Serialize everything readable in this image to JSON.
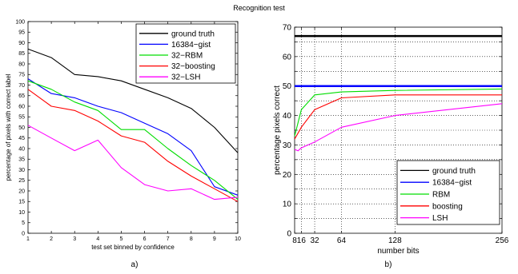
{
  "figure": {
    "title": "Recognition test",
    "panel_captions": [
      "a)",
      "b)"
    ]
  },
  "chart_data": [
    {
      "type": "line",
      "title": "",
      "xlabel": "test set binned by confidence",
      "ylabel": "percentage of pixels with correct label",
      "xlim": [
        1,
        10
      ],
      "ylim": [
        0,
        100
      ],
      "xticks": [
        1,
        2,
        3,
        4,
        5,
        6,
        7,
        8,
        9,
        10
      ],
      "yticks": [
        0,
        5,
        10,
        15,
        20,
        25,
        30,
        35,
        40,
        45,
        50,
        55,
        60,
        65,
        70,
        75,
        80,
        85,
        90,
        95,
        100
      ],
      "grid": false,
      "legend": "top-right",
      "x": [
        1,
        2,
        3,
        4,
        5,
        6,
        7,
        8,
        9,
        10
      ],
      "series": [
        {
          "name": "ground truth",
          "color": "#000000",
          "values": [
            87,
            83,
            75,
            74,
            72,
            68,
            64,
            59,
            50,
            38
          ]
        },
        {
          "name": "16384−gist",
          "color": "#0000ff",
          "values": [
            73,
            66,
            64,
            60,
            57,
            52,
            47,
            39,
            22,
            18
          ]
        },
        {
          "name": "32−RBM",
          "color": "#00dd00",
          "values": [
            72,
            68,
            62,
            58,
            49,
            49,
            40,
            32,
            25,
            16
          ]
        },
        {
          "name": "32−boosting",
          "color": "#ff0000",
          "values": [
            68,
            60,
            58,
            53,
            46,
            43,
            34,
            27,
            21,
            15
          ]
        },
        {
          "name": "32−LSH",
          "color": "#ff00ff",
          "values": [
            51,
            45,
            39,
            44,
            31,
            23,
            20,
            21,
            16,
            17
          ]
        }
      ]
    },
    {
      "type": "line",
      "title": "",
      "xlabel": "number bits",
      "ylabel": "percentage pixels correct",
      "xlim": [
        8,
        256
      ],
      "ylim": [
        0,
        70
      ],
      "xticks": [
        8,
        16,
        32,
        64,
        128,
        256
      ],
      "yticks": [
        0,
        5,
        10,
        15,
        20,
        25,
        30,
        35,
        40,
        45,
        50,
        55,
        60,
        65,
        70
      ],
      "ytick_labels": [
        0,
        10,
        20,
        30,
        40,
        50,
        60,
        70
      ],
      "grid": true,
      "legend": "bottom-right",
      "series": [
        {
          "name": "ground truth",
          "color": "#000000",
          "x": [
            8,
            256
          ],
          "values": [
            67,
            67
          ]
        },
        {
          "name": "16384−gist",
          "color": "#0000ff",
          "x": [
            8,
            256
          ],
          "values": [
            50,
            50
          ]
        },
        {
          "name": "RBM",
          "color": "#00dd00",
          "x": [
            8,
            16,
            32,
            64,
            128,
            256
          ],
          "values": [
            33,
            42,
            47,
            48,
            48.5,
            49
          ]
        },
        {
          "name": "boosting",
          "color": "#ff0000",
          "x": [
            8,
            16,
            32,
            64,
            128,
            256
          ],
          "values": [
            32,
            36,
            42,
            46,
            47,
            47
          ]
        },
        {
          "name": "LSH",
          "color": "#ff00ff",
          "x": [
            8,
            12,
            16,
            32,
            64,
            128,
            256
          ],
          "values": [
            28.5,
            28,
            29,
            31,
            36,
            40,
            44
          ]
        }
      ]
    }
  ]
}
